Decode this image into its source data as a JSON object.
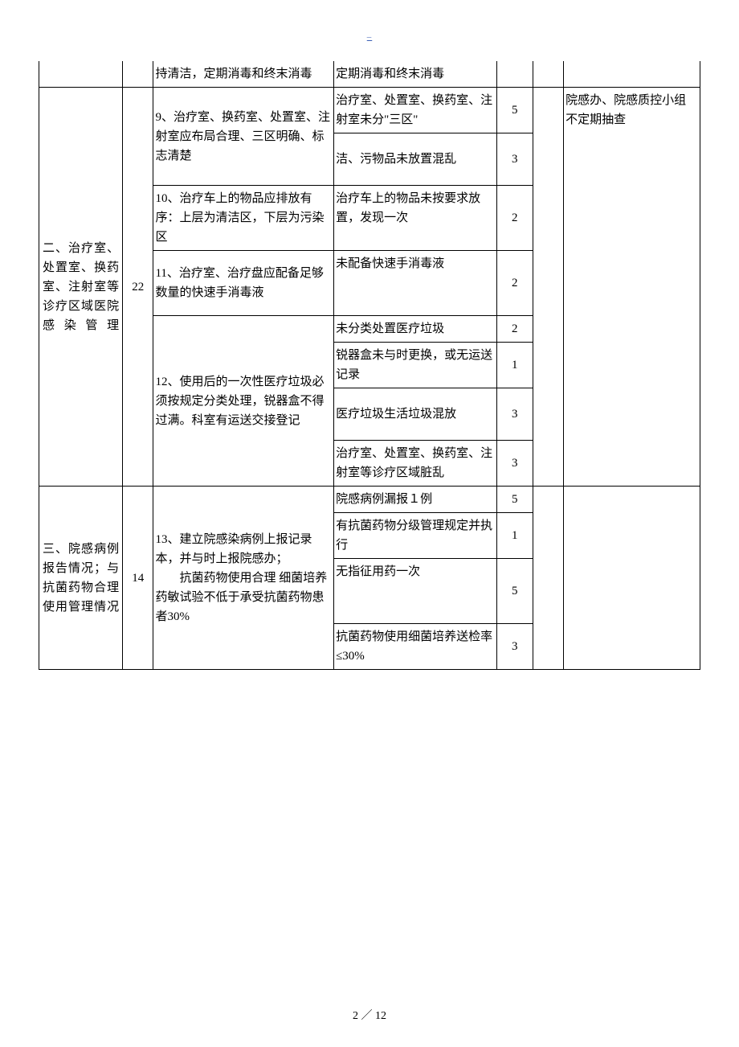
{
  "header_mark": "–",
  "footer": "2 ／ 12",
  "table": {
    "row1": {
      "c": "持清洁，定期消毒和终末消毒",
      "d": "定期消毒和终末消毒"
    },
    "section2": {
      "title": "二、治疗室、处置室、换药室、注射室等诊疗区域医院感染管理",
      "points": "22",
      "note": "院感办、院感质控小组不定期抽查"
    },
    "row2a": {
      "c": "9、治疗室、换药室、处置室、注射室应布局合理、三区明确、标志清楚",
      "d": "治疗室、处置室、换药室、注射室未分\"三区\"",
      "e": "5"
    },
    "row2b": {
      "d": "洁、污物品未放置混乱",
      "e": "3"
    },
    "row3": {
      "c": "10、治疗车上的物品应排放有序：上层为清洁区，下层为污染区",
      "d": "治疗车上的物品未按要求放置，发现一次",
      "e": "2"
    },
    "row4": {
      "c": "11、治疗室、治疗盘应配备足够数量的快速手消毒液",
      "d": "未配备快速手消毒液",
      "e": "2"
    },
    "row5a": {
      "c": "12、使用后的一次性医疗垃圾必须按规定分类处理，锐器盒不得过满。科室有运送交接登记",
      "d": "未分类处置医疗垃圾",
      "e": "2"
    },
    "row5b": {
      "d": "锐器盒未与时更换，或无运送记录",
      "e": "1"
    },
    "row5c": {
      "d": "医疗垃圾生活垃圾混放",
      "e": "3"
    },
    "row5d": {
      "d": "治疗室、处置室、换药室、注射室等诊疗区域脏乱",
      "e": "3"
    },
    "section3": {
      "title": "三、院感病例报告情况；与抗菌药物合理使用管理情况",
      "points": "14"
    },
    "row6a": {
      "c": "13、建立院感染病例上报记录本，并与时上报院感办；\n　　抗菌药物使用合理 细菌培养药敏试验不低于承受抗菌药物患者30%",
      "d": "院感病例漏报１例",
      "e": "5"
    },
    "row6b": {
      "d": "有抗菌药物分级管理规定并执行",
      "e": "1"
    },
    "row6c": {
      "d": "无指征用药一次",
      "e": "5"
    },
    "row6d": {
      "d": "抗菌药物使用细菌培养送检率≤30%",
      "e": "3"
    }
  }
}
